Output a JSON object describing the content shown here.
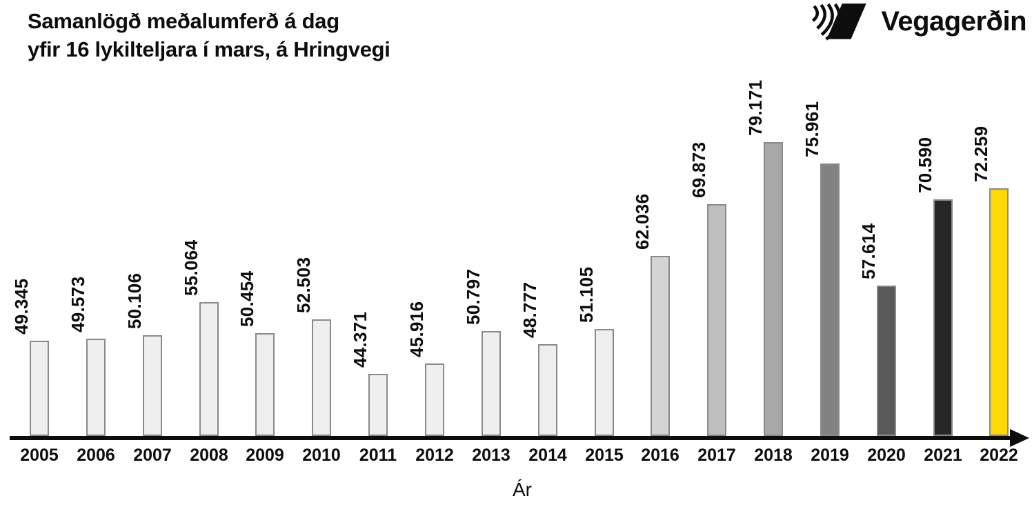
{
  "header": {
    "title_line1": "Samanlögð meðalumferð á dag",
    "title_line2": "yfir 16 lykilteljara í mars, á Hringvegi",
    "brand": {
      "name": "Vegagerðin",
      "logo_icon": "vegagerdin-striped-parallelogram"
    }
  },
  "chart_data": {
    "type": "bar",
    "title": "Samanlögð meðalumferð á dag yfir 16 lykilteljara í mars, á Hringvegi",
    "xlabel": "Ár",
    "ylabel": "",
    "grid": false,
    "legend": "none",
    "axis_min": 35000,
    "axis_max": 80000,
    "categories": [
      "2005",
      "2006",
      "2007",
      "2008",
      "2009",
      "2010",
      "2011",
      "2012",
      "2013",
      "2014",
      "2015",
      "2016",
      "2017",
      "2018",
      "2019",
      "2020",
      "2021",
      "2022"
    ],
    "values": [
      49345,
      49573,
      50106,
      55064,
      50454,
      52503,
      44371,
      45916,
      50797,
      48777,
      51105,
      62036,
      69873,
      79171,
      75961,
      57614,
      70590,
      72259
    ],
    "value_labels": [
      "49.345",
      "49.573",
      "50.106",
      "55.064",
      "50.454",
      "52.503",
      "44.371",
      "45.916",
      "50.797",
      "48.777",
      "51.105",
      "62.036",
      "69.873",
      "79.171",
      "75.961",
      "57.614",
      "70.590",
      "72.259"
    ],
    "bar_colors": [
      "#efefef",
      "#efefef",
      "#efefef",
      "#efefef",
      "#efefef",
      "#efefef",
      "#efefef",
      "#efefef",
      "#efefef",
      "#efefef",
      "#efefef",
      "#d4d4d4",
      "#bfbfbf",
      "#a8a8a8",
      "#828282",
      "#595959",
      "#262626",
      "#fdd802"
    ],
    "bar_border_color": "#8a8a8a",
    "axis_color": "#0d0d0d",
    "text_color": "#0d0d0d"
  }
}
